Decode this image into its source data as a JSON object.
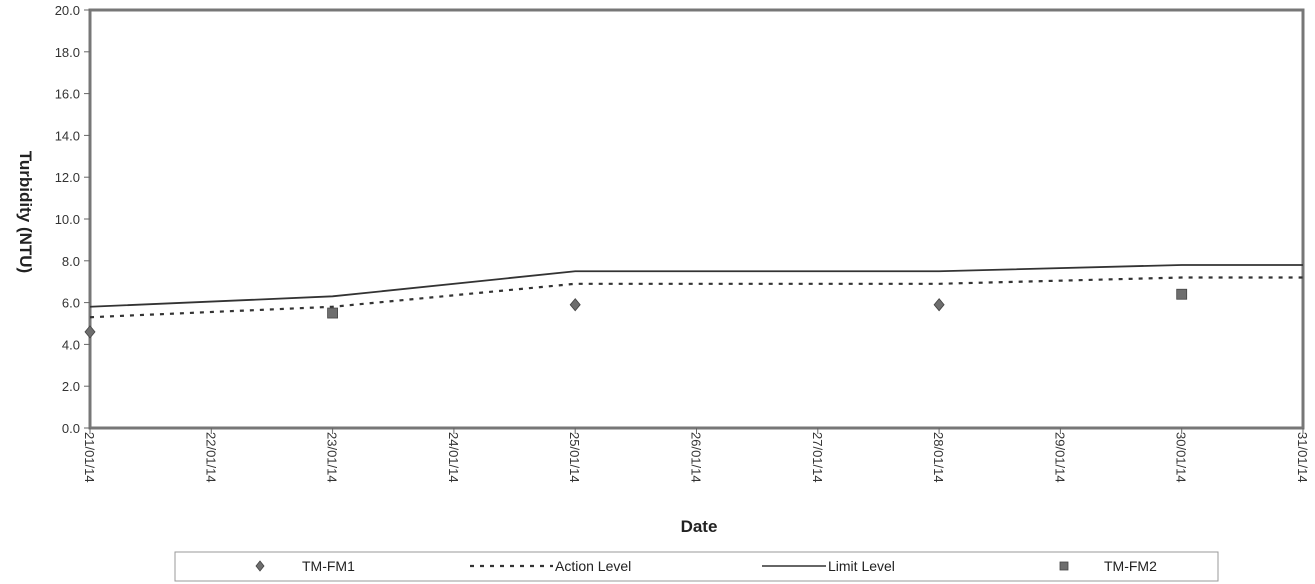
{
  "chart_data": {
    "type": "line",
    "title": "",
    "xlabel": "Date",
    "ylabel": "Turbidity (NTU)",
    "ylim": [
      0,
      20
    ],
    "yticks": [
      "0.0",
      "2.0",
      "4.0",
      "6.0",
      "8.0",
      "10.0",
      "12.0",
      "14.0",
      "16.0",
      "18.0",
      "20.0"
    ],
    "x_categories": [
      "21/01/14",
      "22/01/14",
      "23/01/14",
      "24/01/14",
      "25/01/14",
      "26/01/14",
      "27/01/14",
      "28/01/14",
      "29/01/14",
      "30/01/14",
      "31/01/14"
    ],
    "grid": false,
    "legend_position": "bottom",
    "series": [
      {
        "name": "TM-FM1",
        "kind": "scatter",
        "marker": "diamond",
        "color": "#6e6e6e",
        "points": [
          {
            "x": "21/01/14",
            "y": 4.6
          },
          {
            "x": "25/01/14",
            "y": 5.9
          },
          {
            "x": "28/01/14",
            "y": 5.9
          }
        ]
      },
      {
        "name": "Action Level",
        "kind": "line",
        "style": "dashed",
        "color": "#333333",
        "points": [
          {
            "x": "21/01/14",
            "y": 5.3
          },
          {
            "x": "23/01/14",
            "y": 5.8
          },
          {
            "x": "25/01/14",
            "y": 6.9
          },
          {
            "x": "28/01/14",
            "y": 6.9
          },
          {
            "x": "30/01/14",
            "y": 7.2
          },
          {
            "x": "31/01/14",
            "y": 7.2
          }
        ]
      },
      {
        "name": "Limit Level",
        "kind": "line",
        "style": "solid",
        "color": "#333333",
        "points": [
          {
            "x": "21/01/14",
            "y": 5.8
          },
          {
            "x": "23/01/14",
            "y": 6.3
          },
          {
            "x": "25/01/14",
            "y": 7.5
          },
          {
            "x": "28/01/14",
            "y": 7.5
          },
          {
            "x": "30/01/14",
            "y": 7.8
          },
          {
            "x": "31/01/14",
            "y": 7.8
          }
        ]
      },
      {
        "name": "TM-FM2",
        "kind": "scatter",
        "marker": "square",
        "color": "#6e6e6e",
        "points": [
          {
            "x": "23/01/14",
            "y": 5.5
          },
          {
            "x": "30/01/14",
            "y": 6.4
          }
        ]
      }
    ]
  }
}
